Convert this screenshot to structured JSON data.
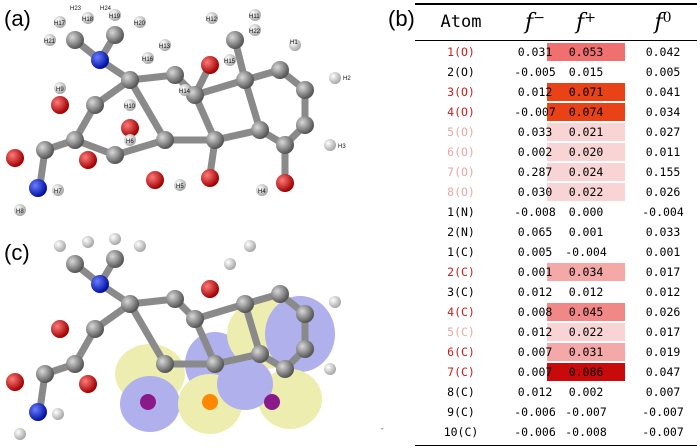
{
  "panels": {
    "a": "(a)",
    "b": "(b)",
    "c": "(c)"
  },
  "molecule_a_labels": {
    "h1": "H1",
    "h2": "H2",
    "h3": "H3",
    "h4": "H4",
    "h5": "H5",
    "h6": "H6",
    "h7": "H7",
    "h8": "H8",
    "h9": "H9",
    "h10": "H10",
    "h11": "H11",
    "h12": "H12",
    "h13": "H13",
    "h14": "H14",
    "h15": "H15",
    "h16": "H16",
    "h17": "H17",
    "h18": "H18",
    "h19": "H19",
    "h20": "H20",
    "h21": "H21",
    "h22": "H22",
    "h23": "H23",
    "h24": "H24"
  },
  "table": {
    "headers": {
      "atom": "Atom",
      "f_minus_base": "f",
      "f_minus_sup": "−",
      "f_plus_base": "f",
      "f_plus_sup": "+",
      "f_zero_base": "f",
      "f_zero_sup": "0"
    },
    "colors": {
      "red_text": "#c8201e",
      "pink_text": "#e8a8a8",
      "black_text": "#000000"
    },
    "rows": [
      {
        "atom": "1(O)",
        "fm": "0.031",
        "fp": "0.053",
        "f0": "0.042",
        "text": "red",
        "bg": "#f07070"
      },
      {
        "atom": "2(O)",
        "fm": "-0.005",
        "fp": "0.015",
        "f0": "0.005",
        "text": "black",
        "bg": ""
      },
      {
        "atom": "3(O)",
        "fm": "0.012",
        "fp": "0.071",
        "f0": "0.041",
        "text": "red",
        "bg": "#e84216"
      },
      {
        "atom": "4(O)",
        "fm": "-0.007",
        "fp": "0.074",
        "f0": "0.034",
        "text": "red",
        "bg": "#e84216"
      },
      {
        "atom": "5(O)",
        "fm": "0.033",
        "fp": "0.021",
        "f0": "0.027",
        "text": "pink",
        "bg": "#f8d4d4"
      },
      {
        "atom": "6(O)",
        "fm": "0.002",
        "fp": "0.020",
        "f0": "0.011",
        "text": "pink",
        "bg": "#f8d4d4"
      },
      {
        "atom": "7(O)",
        "fm": "0.287",
        "fp": "0.024",
        "f0": "0.155",
        "text": "pink",
        "bg": "#f8d4d4"
      },
      {
        "atom": "8(O)",
        "fm": "0.030",
        "fp": "0.022",
        "f0": "0.026",
        "text": "pink",
        "bg": "#f8d4d4"
      },
      {
        "atom": "1(N)",
        "fm": "-0.008",
        "fp": "0.000",
        "f0": "-0.004",
        "text": "black",
        "bg": ""
      },
      {
        "atom": "2(N)",
        "fm": "0.065",
        "fp": "0.001",
        "f0": "0.033",
        "text": "black",
        "bg": ""
      },
      {
        "atom": "1(C)",
        "fm": "0.005",
        "fp": "-0.004",
        "f0": "0.001",
        "text": "black",
        "bg": ""
      },
      {
        "atom": "2(C)",
        "fm": "0.001",
        "fp": "0.034",
        "f0": "0.017",
        "text": "red",
        "bg": "#f4a8a8"
      },
      {
        "atom": "3(C)",
        "fm": "0.012",
        "fp": "0.012",
        "f0": "0.012",
        "text": "black",
        "bg": ""
      },
      {
        "atom": "4(C)",
        "fm": "0.008",
        "fp": "0.045",
        "f0": "0.026",
        "text": "red",
        "bg": "#f08888"
      },
      {
        "atom": "5(C)",
        "fm": "0.012",
        "fp": "0.022",
        "f0": "0.017",
        "text": "pink",
        "bg": "#f8d4d4"
      },
      {
        "atom": "6(C)",
        "fm": "0.007",
        "fp": "0.031",
        "f0": "0.019",
        "text": "red",
        "bg": "#f4a8a8"
      },
      {
        "atom": "7(C)",
        "fm": "0.007",
        "fp": "0.086",
        "f0": "0.047",
        "text": "red",
        "bg": "#c80a0a"
      },
      {
        "atom": "8(C)",
        "fm": "0.012",
        "fp": "0.002",
        "f0": "0.007",
        "text": "black",
        "bg": ""
      },
      {
        "atom": "9(C)",
        "fm": "-0.006",
        "fp": "-0.007",
        "f0": "-0.007",
        "text": "black",
        "bg": ""
      },
      {
        "atom": "10(C)",
        "fm": "-0.006",
        "fp": "-0.008",
        "f0": "-0.007",
        "text": "black",
        "bg": ""
      }
    ]
  }
}
